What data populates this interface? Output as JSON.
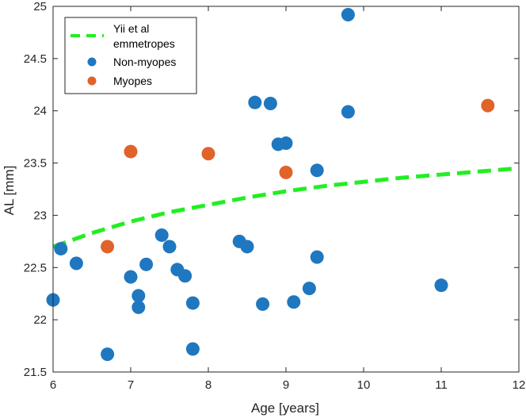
{
  "chart_data": {
    "type": "scatter",
    "title": "",
    "xlabel": "Age [years]",
    "ylabel": "AL [mm]",
    "xlim": [
      6,
      12
    ],
    "ylim": [
      21.5,
      25
    ],
    "xticks": [
      6,
      7,
      8,
      9,
      10,
      11,
      12
    ],
    "yticks": [
      21.5,
      22,
      22.5,
      23,
      23.5,
      24,
      24.5,
      25
    ],
    "xtick_labels": [
      "6",
      "7",
      "8",
      "9",
      "10",
      "11",
      "12"
    ],
    "ytick_labels": [
      "21.5",
      "22",
      "22.5",
      "23",
      "23.5",
      "24",
      "24.5",
      "25"
    ],
    "grid": false,
    "legend_position": "top-left",
    "legend": [
      {
        "name": "Yii et al emmetropes",
        "line1": "Yii et al",
        "line2": "emmetropes",
        "style": "dashed-line",
        "color": "#22ee22"
      },
      {
        "name": "Non-myopes",
        "style": "marker",
        "color": "#1f77c0"
      },
      {
        "name": "Myopes",
        "style": "marker",
        "color": "#e0632a"
      }
    ],
    "series": [
      {
        "name": "Yii et al emmetropes",
        "type": "line",
        "style": "dashed",
        "color": "#22ee22",
        "x": [
          6.0,
          6.5,
          7.0,
          7.5,
          8.0,
          8.5,
          9.0,
          9.5,
          10.0,
          10.5,
          11.0,
          11.5,
          12.0
        ],
        "y": [
          22.7,
          22.83,
          22.94,
          23.03,
          23.1,
          23.17,
          23.23,
          23.28,
          23.32,
          23.36,
          23.39,
          23.42,
          23.45
        ]
      },
      {
        "name": "Non-myopes",
        "type": "scatter",
        "color": "#1f77c0",
        "x": [
          6.0,
          6.1,
          6.3,
          6.7,
          7.0,
          7.1,
          7.1,
          7.2,
          7.4,
          7.5,
          7.6,
          7.7,
          7.8,
          7.8,
          8.4,
          8.5,
          8.6,
          8.7,
          8.8,
          8.9,
          9.0,
          9.1,
          9.3,
          9.4,
          9.4,
          9.8,
          9.8,
          11.0
        ],
        "y": [
          22.19,
          22.68,
          22.54,
          21.67,
          22.41,
          22.23,
          22.12,
          22.53,
          22.81,
          22.7,
          22.48,
          22.42,
          22.16,
          21.72,
          22.75,
          22.7,
          24.08,
          22.15,
          24.07,
          23.68,
          23.69,
          22.17,
          22.3,
          23.43,
          22.6,
          24.92,
          23.99,
          22.33
        ]
      },
      {
        "name": "Myopes",
        "type": "scatter",
        "color": "#e0632a",
        "x": [
          6.7,
          7.0,
          8.0,
          9.0,
          11.6
        ],
        "y": [
          22.7,
          23.61,
          23.59,
          23.41,
          24.05
        ]
      }
    ]
  }
}
